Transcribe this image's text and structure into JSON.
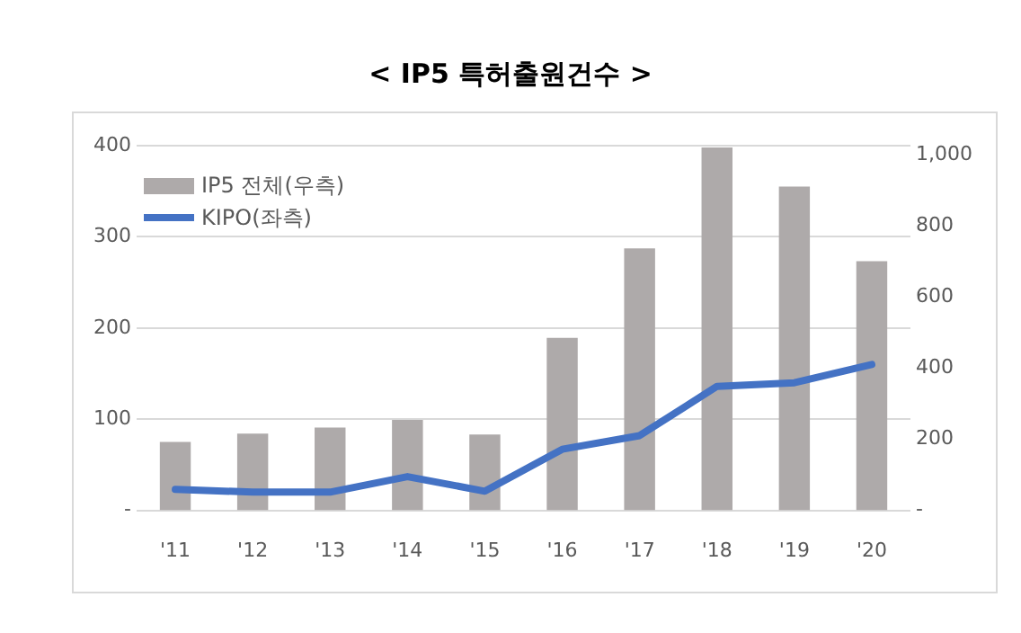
{
  "chart_data": {
    "type": "bar",
    "title": "< IP5 특허출원건수 >",
    "categories": [
      "'11",
      "'12",
      "'13",
      "'14",
      "'15",
      "'16",
      "'17",
      "'18",
      "'19",
      "'20"
    ],
    "series": [
      {
        "name": "IP5 전체(우측)",
        "axis": "y2",
        "color": "#aeaaaa",
        "values": [
          192,
          216,
          233,
          254,
          213,
          485,
          736,
          1020,
          910,
          700
        ]
      },
      {
        "name": "KIPO(좌측)",
        "type": "line",
        "color": "#4472c4",
        "values": [
          23,
          20,
          20,
          37,
          21,
          67,
          82,
          136,
          140,
          160
        ]
      }
    ],
    "ylim": [
      0,
      400
    ],
    "yticks": [
      {
        "value": 0,
        "label": "-"
      },
      100,
      200,
      300,
      400
    ],
    "y2lim": [
      0,
      1025
    ],
    "y2ticks": [
      {
        "value": 0,
        "label": "-"
      },
      200,
      400,
      600,
      800,
      {
        "value": 1000,
        "label": "1,000"
      }
    ],
    "grid": "y",
    "legend": "top left",
    "marker": "none",
    "line_style": "solid"
  }
}
